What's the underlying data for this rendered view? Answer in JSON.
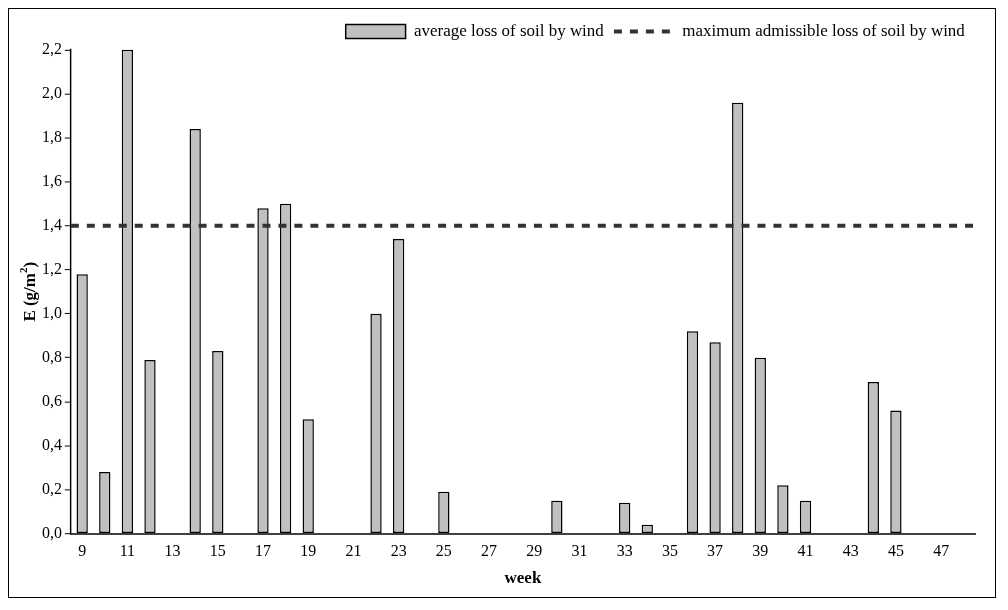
{
  "chart_data": {
    "type": "bar",
    "xlabel": "week",
    "ylabel": "E (g/m$^{2}$)",
    "categories": [
      "9",
      null,
      "11",
      null,
      "13",
      null,
      "15",
      null,
      "17",
      null,
      "19",
      null,
      "21",
      null,
      "23",
      null,
      "25",
      null,
      "27",
      null,
      "29",
      null,
      "31",
      null,
      "33",
      null,
      "35",
      null,
      "37",
      null,
      "39",
      null,
      "41",
      null,
      "43",
      null,
      "45",
      null,
      "47",
      null
    ],
    "series": [
      {
        "name": "average loss of soil by wind",
        "color": "#c0c0c0",
        "values": [
          1.18,
          0.28,
          2.2,
          0.79,
          null,
          1.84,
          0.83,
          null,
          1.48,
          1.5,
          0.52,
          null,
          null,
          1.0,
          1.34,
          null,
          0.19,
          null,
          null,
          null,
          null,
          0.15,
          null,
          null,
          0.14,
          0.04,
          null,
          0.92,
          0.87,
          1.96,
          0.8,
          0.22,
          0.15,
          null,
          null,
          0.69,
          0.56,
          null,
          null,
          null
        ]
      }
    ],
    "ylim": [
      0,
      2.2
    ],
    "yticks": [
      {
        "value": 0,
        "label": "0,0"
      },
      {
        "value": 0.2,
        "label": "0,2"
      },
      {
        "value": 0.4,
        "label": "0,4"
      },
      {
        "value": 0.6,
        "label": "0,6"
      },
      {
        "value": 0.8,
        "label": "0,8"
      },
      {
        "value": 1.0,
        "label": "1,0"
      },
      {
        "value": 1.2,
        "label": "1,2"
      },
      {
        "value": 1.4,
        "label": "1,4"
      },
      {
        "value": 1.6,
        "label": "1,6"
      },
      {
        "value": 1.8,
        "label": "1,8"
      },
      {
        "value": 2.0,
        "label": "2,0"
      },
      {
        "value": 2.2,
        "label": "2,2"
      }
    ],
    "ref_lines": [
      {
        "axis": "y",
        "value": 1.4,
        "label": "maximum admissible loss of soil by wind",
        "color": "#333333",
        "line_style": "dashed"
      }
    ],
    "grid": false,
    "legend": "top right"
  }
}
